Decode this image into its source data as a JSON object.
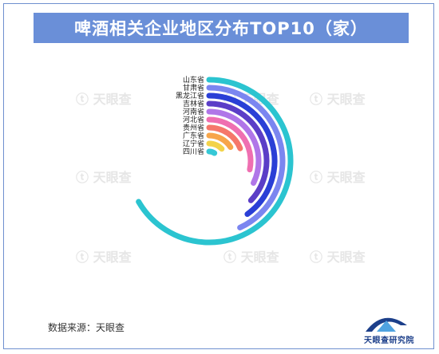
{
  "title": "啤酒相关企业地区分布TOP10（家）",
  "source": "数据来源：天眼查",
  "brand": "天眼查研究院",
  "watermark": "天眼查",
  "chart_data": {
    "type": "radial-bar",
    "title": "啤酒相关企业地区分布TOP10（家）",
    "unit": "家",
    "categories": [
      "山东省",
      "甘肃省",
      "黑龙江省",
      "吉林省",
      "河南省",
      "河北省",
      "贵州省",
      "广东省",
      "辽宁省",
      "四川省"
    ],
    "values": [
      1980,
      1280,
      1190,
      1100,
      960,
      840,
      560,
      470,
      380,
      280
    ],
    "colors": [
      "#2bc4d0",
      "#7b86f0",
      "#2a3fd6",
      "#5b3ec7",
      "#b076e8",
      "#ef6fb1",
      "#f5776a",
      "#f7a54a",
      "#f3d34a",
      "#36c8d6"
    ],
    "max_sweep_degrees": 240,
    "grid": false,
    "legend": "none"
  }
}
